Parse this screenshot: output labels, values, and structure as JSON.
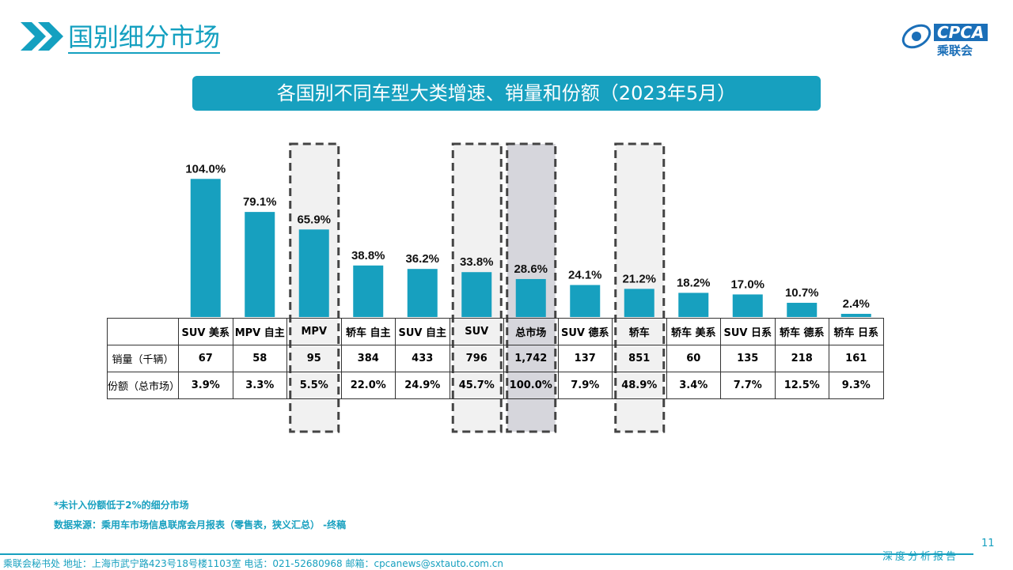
{
  "header": {
    "title": "国别细分市场",
    "banner": "各国别不同车型大类增速、销量和份额（2023年5月）",
    "logo_text": "CPCA",
    "logo_cn": "乘联会"
  },
  "chart_data": {
    "type": "bar",
    "title": "各国别不同车型大类增速、销量和份额（2023年5月）",
    "categories": [
      "SUV 美系",
      "MPV 自主",
      "MPV",
      "轿车 自主",
      "SUV 自主",
      "SUV",
      "总市场",
      "SUV 德系",
      "轿车",
      "轿车 美系",
      "SUV 日系",
      "轿车 德系",
      "轿车 日系"
    ],
    "values": [
      104.0,
      79.1,
      65.9,
      38.8,
      36.2,
      33.8,
      28.6,
      24.1,
      21.2,
      18.2,
      17.0,
      10.7,
      2.4
    ],
    "value_labels": [
      "104.0%",
      "79.1%",
      "65.9%",
      "38.8%",
      "36.2%",
      "33.8%",
      "28.6%",
      "24.1%",
      "21.2%",
      "18.2%",
      "17.0%",
      "10.7%",
      "2.4%"
    ],
    "highlighted": [
      "MPV",
      "SUV",
      "总市场",
      "轿车"
    ],
    "bar_color": "#17a0bf",
    "table": {
      "row_labels": [
        "销量（千辆）",
        "份额（总市场）"
      ],
      "sales": [
        "67",
        "58",
        "95",
        "384",
        "433",
        "796",
        "1,742",
        "137",
        "851",
        "60",
        "135",
        "218",
        "161"
      ],
      "share": [
        "3.9%",
        "3.3%",
        "5.5%",
        "22.0%",
        "24.9%",
        "45.7%",
        "100.0%",
        "7.9%",
        "48.9%",
        "3.4%",
        "7.7%",
        "12.5%",
        "9.3%"
      ]
    }
  },
  "notes": {
    "note1": "*未计入份额低于2%的细分市场",
    "note2": "数据来源：乘用车市场信息联席会月报表（零售表，狭义汇总） -终稿"
  },
  "footer": {
    "address": "乘联会秘书处   地址：上海市武宁路423号18号楼1103室  电话：021-52680968   邮箱：cpcanews@sxtauto.com.cn",
    "page": "11",
    "tag": "深度分析报告"
  }
}
